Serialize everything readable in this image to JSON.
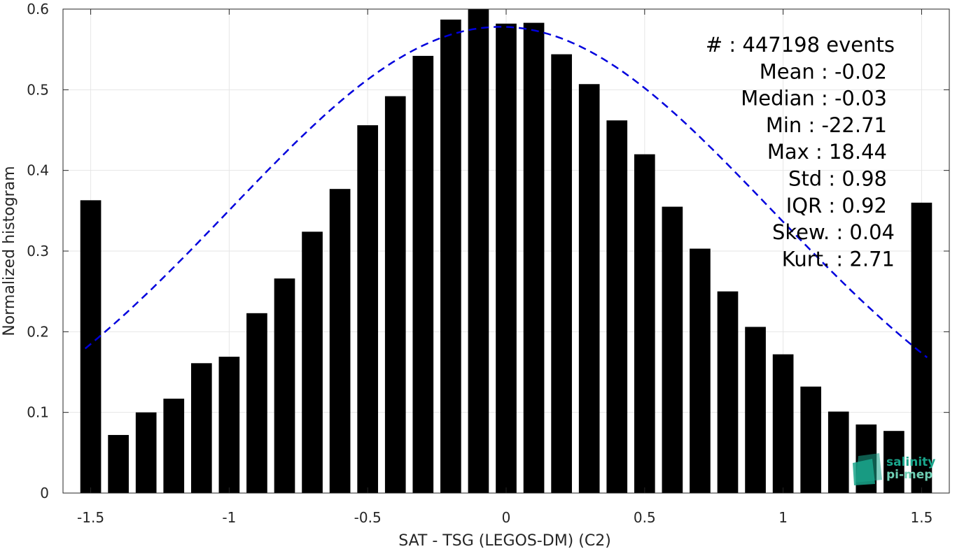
{
  "chart_data": {
    "type": "bar",
    "xlabel": "SAT - TSG (LEGOS-DM) (C2)",
    "ylabel": "Normalized histogram",
    "xlim": [
      -1.6,
      1.6
    ],
    "ylim": [
      0,
      0.6
    ],
    "xticks": [
      -1.5,
      -1,
      -0.5,
      0,
      0.5,
      1,
      1.5
    ],
    "xtick_labels": [
      "-1.5",
      "-1",
      "-0.5",
      "0",
      "0.5",
      "1",
      "1.5"
    ],
    "yticks": [
      0,
      0.1,
      0.2,
      0.3,
      0.4,
      0.5,
      0.6
    ],
    "ytick_labels": [
      "0",
      "0.1",
      "0.2",
      "0.3",
      "0.4",
      "0.5",
      "0.6"
    ],
    "grid": true,
    "bar_width": 0.075,
    "bar_color": "#000000",
    "bars": [
      {
        "x": -1.5,
        "y": 0.363
      },
      {
        "x": -1.4,
        "y": 0.072
      },
      {
        "x": -1.3,
        "y": 0.1
      },
      {
        "x": -1.2,
        "y": 0.117
      },
      {
        "x": -1.1,
        "y": 0.161
      },
      {
        "x": -1.0,
        "y": 0.169
      },
      {
        "x": -0.9,
        "y": 0.223
      },
      {
        "x": -0.8,
        "y": 0.266
      },
      {
        "x": -0.7,
        "y": 0.324
      },
      {
        "x": -0.6,
        "y": 0.377
      },
      {
        "x": -0.5,
        "y": 0.456
      },
      {
        "x": -0.4,
        "y": 0.492
      },
      {
        "x": -0.3,
        "y": 0.542
      },
      {
        "x": -0.2,
        "y": 0.587
      },
      {
        "x": -0.1,
        "y": 0.6
      },
      {
        "x": 0.0,
        "y": 0.582
      },
      {
        "x": 0.1,
        "y": 0.583
      },
      {
        "x": 0.2,
        "y": 0.544
      },
      {
        "x": 0.3,
        "y": 0.507
      },
      {
        "x": 0.4,
        "y": 0.462
      },
      {
        "x": 0.5,
        "y": 0.42
      },
      {
        "x": 0.6,
        "y": 0.355
      },
      {
        "x": 0.7,
        "y": 0.303
      },
      {
        "x": 0.8,
        "y": 0.25
      },
      {
        "x": 0.9,
        "y": 0.206
      },
      {
        "x": 1.0,
        "y": 0.172
      },
      {
        "x": 1.1,
        "y": 0.132
      },
      {
        "x": 1.2,
        "y": 0.101
      },
      {
        "x": 1.3,
        "y": 0.085
      },
      {
        "x": 1.4,
        "y": 0.077
      },
      {
        "x": 1.5,
        "y": 0.36
      }
    ],
    "fit_curve": {
      "style": "dashed",
      "color": "#0000dd",
      "mean": -0.02,
      "std": 0.98,
      "peak": 0.578,
      "x_range": [
        -1.52,
        1.52
      ]
    },
    "stats": [
      {
        "label": "#  : 447198 events"
      },
      {
        "label": "Mean : -0.02"
      },
      {
        "label": "Median : -0.03"
      },
      {
        "label": "Min : -22.71"
      },
      {
        "label": "Max : 18.44"
      },
      {
        "label": "Std : 0.98"
      },
      {
        "label": "IQR : 0.92"
      },
      {
        "label": "Skew. : 0.04"
      },
      {
        "label": "Kurt. : 2.71"
      }
    ]
  },
  "logo": {
    "line1": "salinity",
    "line2": "pi-mep",
    "color": "#1aa68c"
  }
}
